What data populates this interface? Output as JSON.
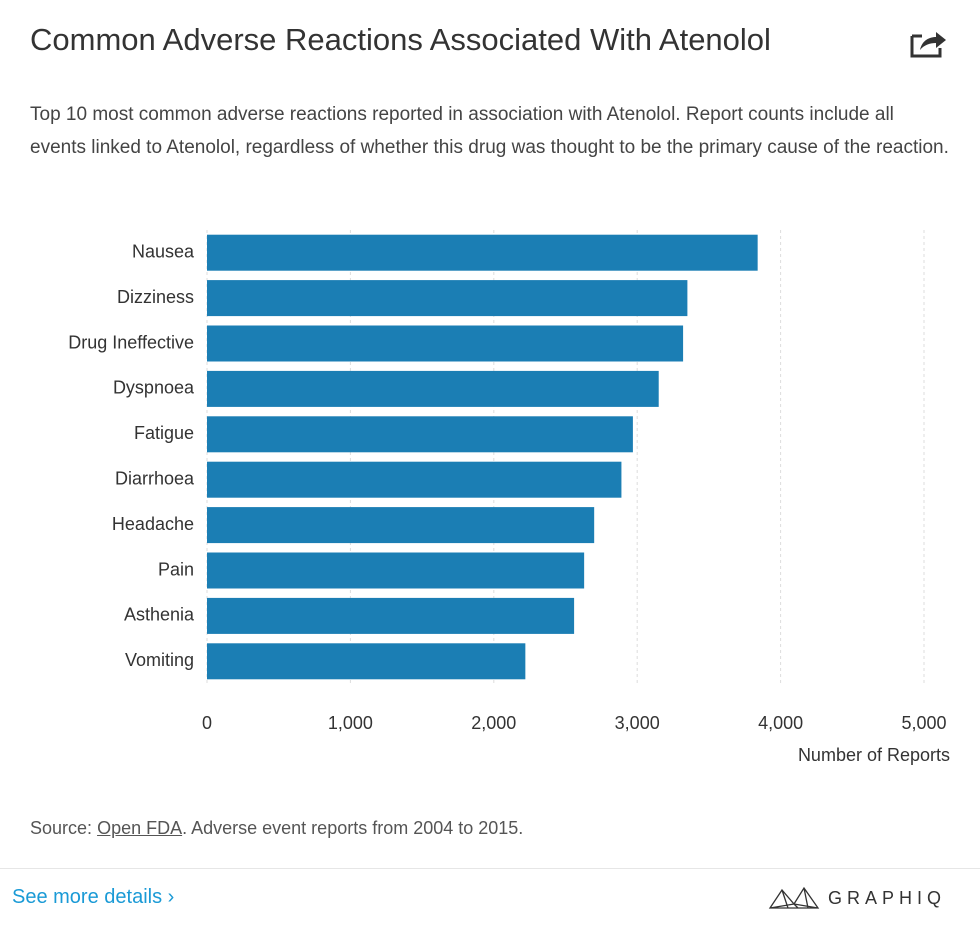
{
  "header": {
    "title": "Common Adverse Reactions Associated With Atenolol",
    "subtitle": "Top 10 most common adverse reactions reported in association with Atenolol. Report counts include all events linked to Atenolol, regardless of whether this drug was thought to be the primary cause of the reaction."
  },
  "chart_data": {
    "type": "bar",
    "orientation": "horizontal",
    "categories": [
      "Nausea",
      "Dizziness",
      "Drug Ineffective",
      "Dyspnoea",
      "Fatigue",
      "Diarrhoea",
      "Headache",
      "Pain",
      "Asthenia",
      "Vomiting"
    ],
    "values": [
      3840,
      3350,
      3320,
      3150,
      2970,
      2890,
      2700,
      2630,
      2560,
      2220
    ],
    "color": "#1b7eb4",
    "x_label": "Number of Reports",
    "xlim": [
      0,
      5000
    ],
    "xticks": [
      0,
      {
        "value": 1000,
        "label": "1,000"
      },
      {
        "value": 2000,
        "label": "2,000"
      },
      {
        "value": 3000,
        "label": "3,000"
      },
      {
        "value": 4000,
        "label": "4,000"
      },
      {
        "value": 5000,
        "label": "5,000"
      }
    ],
    "grid": true
  },
  "footer": {
    "source_prefix": "Source:",
    "source_link": "Open FDA",
    "source_suffix": ". Adverse event reports from 2004 to 2015.",
    "details_link": "See more details ›",
    "brand": "GRAPHIQ"
  }
}
